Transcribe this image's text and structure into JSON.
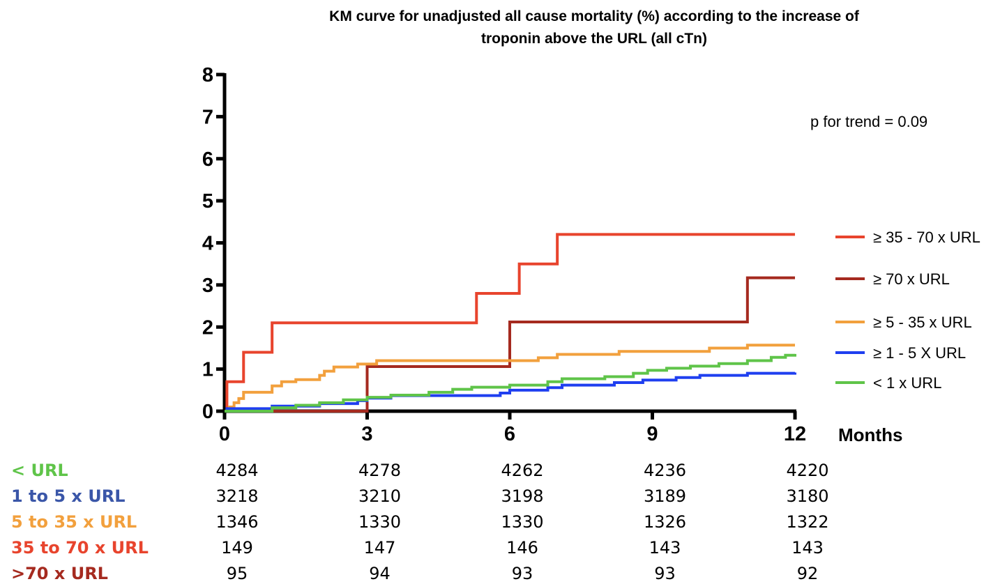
{
  "chart_data": {
    "type": "line",
    "subtype": "kaplan-meier step curve",
    "title_line1": "KM curve for unadjusted all cause mortality (%) according to the increase of",
    "title_line2": "troponin above the URL (all cTn)",
    "xlabel": "Months",
    "ylabel": "",
    "xlim": [
      0,
      12
    ],
    "ylim": [
      0,
      8
    ],
    "xticks": [
      0,
      3,
      6,
      9,
      12
    ],
    "yticks": [
      0,
      1,
      2,
      3,
      4,
      5,
      6,
      7,
      8
    ],
    "grid": false,
    "legend_position": "right",
    "annotation": "p for trend = 0.09",
    "series": [
      {
        "name": "≥ 35 - 70 x URL",
        "color": "#e8442d",
        "points": [
          [
            0,
            0
          ],
          [
            0.05,
            0.7
          ],
          [
            0.4,
            1.4
          ],
          [
            1.0,
            2.1
          ],
          [
            5.3,
            2.8
          ],
          [
            6.2,
            3.5
          ],
          [
            7.0,
            4.2
          ],
          [
            12,
            4.2
          ]
        ]
      },
      {
        "name": "≥ 70 x URL",
        "color": "#a52a1f",
        "points": [
          [
            0,
            0
          ],
          [
            3.0,
            1.06
          ],
          [
            6.0,
            2.12
          ],
          [
            11.0,
            3.17
          ],
          [
            12,
            3.17
          ]
        ]
      },
      {
        "name": "≥ 5 - 35 x URL",
        "color": "#f2a03d",
        "points": [
          [
            0,
            0
          ],
          [
            0.1,
            0.1
          ],
          [
            0.2,
            0.2
          ],
          [
            0.3,
            0.3
          ],
          [
            0.4,
            0.45
          ],
          [
            1.0,
            0.6
          ],
          [
            1.2,
            0.7
          ],
          [
            1.5,
            0.75
          ],
          [
            2.0,
            0.85
          ],
          [
            2.1,
            0.95
          ],
          [
            2.3,
            1.05
          ],
          [
            2.8,
            1.12
          ],
          [
            3.2,
            1.2
          ],
          [
            6.6,
            1.27
          ],
          [
            7.0,
            1.35
          ],
          [
            8.3,
            1.42
          ],
          [
            10.2,
            1.5
          ],
          [
            11.0,
            1.57
          ],
          [
            12,
            1.57
          ]
        ]
      },
      {
        "name": "≥ 1 - 5 X URL",
        "color": "#1f3ff0",
        "points": [
          [
            0,
            0
          ],
          [
            0.05,
            0.06
          ],
          [
            1.0,
            0.12
          ],
          [
            2.0,
            0.18
          ],
          [
            2.8,
            0.25
          ],
          [
            3.0,
            0.31
          ],
          [
            3.5,
            0.37
          ],
          [
            5.8,
            0.43
          ],
          [
            6.0,
            0.5
          ],
          [
            6.8,
            0.56
          ],
          [
            7.1,
            0.62
          ],
          [
            8.2,
            0.68
          ],
          [
            8.8,
            0.74
          ],
          [
            9.5,
            0.8
          ],
          [
            10.0,
            0.85
          ],
          [
            11.0,
            0.9
          ],
          [
            12,
            0.92
          ]
        ]
      },
      {
        "name": "< 1 x URL",
        "color": "#5fc449",
        "points": [
          [
            0,
            0
          ],
          [
            1.0,
            0.08
          ],
          [
            1.5,
            0.14
          ],
          [
            2.0,
            0.2
          ],
          [
            2.5,
            0.27
          ],
          [
            3.0,
            0.33
          ],
          [
            3.5,
            0.38
          ],
          [
            4.3,
            0.45
          ],
          [
            4.8,
            0.52
          ],
          [
            5.2,
            0.57
          ],
          [
            6.0,
            0.62
          ],
          [
            6.8,
            0.7
          ],
          [
            7.1,
            0.77
          ],
          [
            8.0,
            0.82
          ],
          [
            8.6,
            0.9
          ],
          [
            8.9,
            0.97
          ],
          [
            9.3,
            1.02
          ],
          [
            9.8,
            1.07
          ],
          [
            10.4,
            1.13
          ],
          [
            11.0,
            1.2
          ],
          [
            11.5,
            1.28
          ],
          [
            11.8,
            1.33
          ],
          [
            12,
            1.36
          ]
        ]
      }
    ]
  },
  "risk_table": {
    "rows": [
      {
        "label": "< URL",
        "color": "#5fc449",
        "values": [
          "4284",
          "4278",
          "4262",
          "4236",
          "4220"
        ]
      },
      {
        "label": "1 to 5 x URL",
        "color": "#3a56a8",
        "values": [
          "3218",
          "3210",
          "3198",
          "3189",
          "3180"
        ]
      },
      {
        "label": "5 to 35 x URL",
        "color": "#f2a03d",
        "values": [
          "1346",
          "1330",
          "1330",
          "1326",
          "1322"
        ]
      },
      {
        "label": "35 to 70 x URL",
        "color": "#e8442d",
        "values": [
          "149",
          "147",
          "146",
          "143",
          "143"
        ]
      },
      {
        "label": ">70 x URL",
        "color": "#a52a1f",
        "values": [
          "95",
          "94",
          "93",
          "93",
          "92"
        ]
      }
    ]
  }
}
